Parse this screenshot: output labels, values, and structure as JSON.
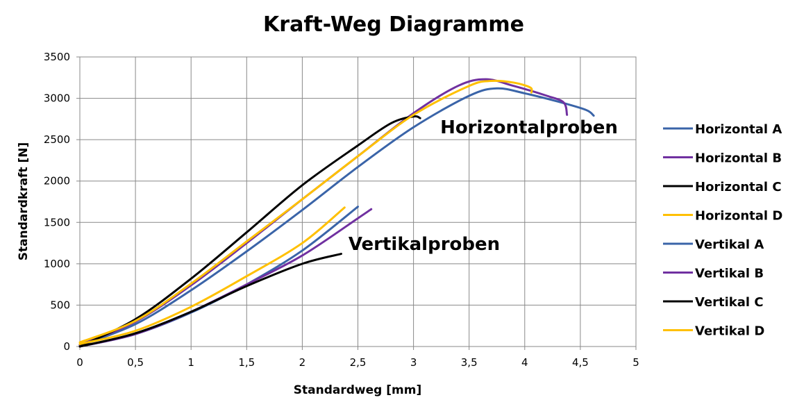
{
  "chart_data": {
    "type": "line",
    "title": "Kraft-Weg Diagramme",
    "xlabel": "Standardweg [mm]",
    "ylabel": "Standardkraft [N]",
    "xlim": [
      0,
      5
    ],
    "ylim": [
      0,
      3500
    ],
    "x_ticks": [
      "0",
      "0,5",
      "1",
      "1,5",
      "2",
      "2,5",
      "3",
      "3,5",
      "4",
      "4,5",
      "5"
    ],
    "y_ticks": [
      "0",
      "500",
      "1000",
      "1500",
      "2000",
      "2500",
      "3000",
      "3500"
    ],
    "grid": true,
    "legend_position": "right",
    "annotations": [
      "Horizontalproben",
      "Vertikalproben"
    ],
    "series": [
      {
        "name": "Horizontal A",
        "color": "#3A64A8",
        "x": [
          0,
          0.5,
          1,
          1.5,
          2,
          2.5,
          3,
          3.5,
          3.75,
          4,
          4.3,
          4.55,
          4.62
        ],
        "y": [
          10,
          270,
          680,
          1150,
          1650,
          2170,
          2650,
          3030,
          3120,
          3060,
          2960,
          2860,
          2790
        ]
      },
      {
        "name": "Horizontal B",
        "color": "#7030A0",
        "x": [
          0,
          0.5,
          1,
          1.5,
          2,
          2.5,
          3,
          3.4,
          3.65,
          3.9,
          4.2,
          4.35,
          4.38
        ],
        "y": [
          20,
          300,
          740,
          1250,
          1780,
          2300,
          2820,
          3150,
          3230,
          3150,
          3030,
          2950,
          2800
        ]
      },
      {
        "name": "Horizontal C",
        "color": "#000000",
        "x": [
          0,
          0.5,
          1,
          1.5,
          2,
          2.5,
          2.8,
          3,
          3.06
        ],
        "y": [
          0,
          330,
          820,
          1380,
          1950,
          2430,
          2700,
          2780,
          2760
        ]
      },
      {
        "name": "Horizontal D",
        "color": "#FFC000",
        "x": [
          0,
          0.5,
          1,
          1.5,
          2,
          2.5,
          3,
          3.5,
          3.7,
          3.9,
          4.05,
          4.06
        ],
        "y": [
          50,
          310,
          760,
          1270,
          1780,
          2300,
          2800,
          3150,
          3210,
          3190,
          3130,
          3070
        ]
      },
      {
        "name": "Vertikal A",
        "color": "#3A64A8",
        "x": [
          0,
          0.5,
          1,
          1.5,
          2,
          2.5
        ],
        "y": [
          0,
          150,
          410,
          750,
          1160,
          1690
        ]
      },
      {
        "name": "Vertikal B",
        "color": "#7030A0",
        "x": [
          0,
          0.5,
          1,
          1.5,
          2,
          2.5,
          2.62
        ],
        "y": [
          0,
          150,
          420,
          750,
          1100,
          1550,
          1660
        ]
      },
      {
        "name": "Vertikal C",
        "color": "#000000",
        "x": [
          0,
          0.5,
          1,
          1.5,
          2,
          2.35
        ],
        "y": [
          0,
          160,
          420,
          730,
          1000,
          1120
        ]
      },
      {
        "name": "Vertikal D",
        "color": "#FFC000",
        "x": [
          0,
          0.5,
          1,
          1.5,
          2,
          2.38
        ],
        "y": [
          30,
          190,
          480,
          850,
          1250,
          1680
        ]
      }
    ]
  }
}
